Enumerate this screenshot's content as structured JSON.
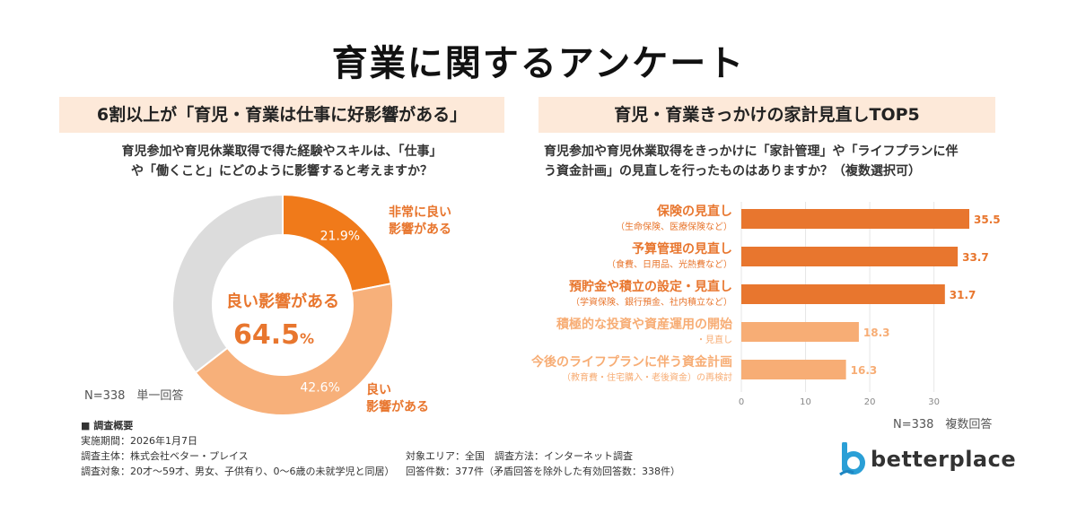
{
  "title": "育業に関するアンケート",
  "left": {
    "header": "6割以上が「育児・育業は仕事に好影響がある」",
    "question_line1": "育児参加や育児休業取得で得た経験やスキルは、「仕事」",
    "question_line2": "や「働くこと」にどのように影響すると考えますか？",
    "center_label": "良い影響がある",
    "center_value": "64.5",
    "center_unit": "%",
    "n_label": "N=338　単一回答"
  },
  "right": {
    "header": "育児・育業きっかけの家計見直しTOP5",
    "question_line1": "育児参加や育児休業取得をきっかけに「家計管理」や「ライフプランに伴",
    "question_line2": "う資金計画」の見直しを行ったものはありますか？（複数選択可）",
    "n_label": "N=338　複数回答"
  },
  "chart_data": [
    {
      "type": "pie",
      "slices": [
        {
          "label_line1": "非常に良い",
          "label_line2": "影響がある",
          "value": 21.9,
          "display": "21.9%",
          "color": "#f07a1a"
        },
        {
          "label_line1": "良い",
          "label_line2": "影響がある",
          "value": 42.6,
          "display": "42.6%",
          "color": "#f7b07a"
        },
        {
          "label_line1": "",
          "label_line2": "",
          "value": 35.5,
          "display": "",
          "color": "#dcdcdc"
        }
      ]
    },
    {
      "type": "bar",
      "orientation": "horizontal",
      "xlim": [
        0,
        35.5
      ],
      "ticks": [
        0,
        10,
        20,
        30
      ],
      "tick_labels": [
        "0",
        "10",
        "20",
        "30"
      ],
      "bars": [
        {
          "label": "保険の見直し",
          "sub": "（生命保険、医療保険など）",
          "value": 35.5,
          "color": "#e8762e",
          "tone": "dark"
        },
        {
          "label": "予算管理の見直し",
          "sub": "（食費、日用品、光熱費など）",
          "value": 33.7,
          "color": "#e8762e",
          "tone": "dark"
        },
        {
          "label": "預貯金や積立の設定・見直し",
          "sub": "（学資保険、銀行預金、社内積立など）",
          "value": 31.7,
          "color": "#e8762e",
          "tone": "dark"
        },
        {
          "label": "積極的な投資や資産運用の開始",
          "sub": "・見直し",
          "value": 18.3,
          "color": "#f7ad75",
          "tone": "light"
        },
        {
          "label": "今後のライフプランに伴う資金計画",
          "sub": "（教育費・住宅購入・老後資金）の再検討",
          "value": 16.3,
          "color": "#f7ad75",
          "tone": "light"
        }
      ]
    }
  ],
  "survey": {
    "heading": "■ 調査概要",
    "period": "実施期間：2026年1月7日",
    "organizer": "調査主体：株式会社ベター・プレイス",
    "target": "調査対象：20才〜59才、男女、子供有り、0〜6歳の未就学児と同居）",
    "area": "対象エリア：全国　調査方法：インターネット調査",
    "count": "回答件数：377件（矛盾回答を除外した有効回答数：338件）"
  },
  "logo": {
    "text": "betterplace",
    "color": "#2a9fd6"
  }
}
